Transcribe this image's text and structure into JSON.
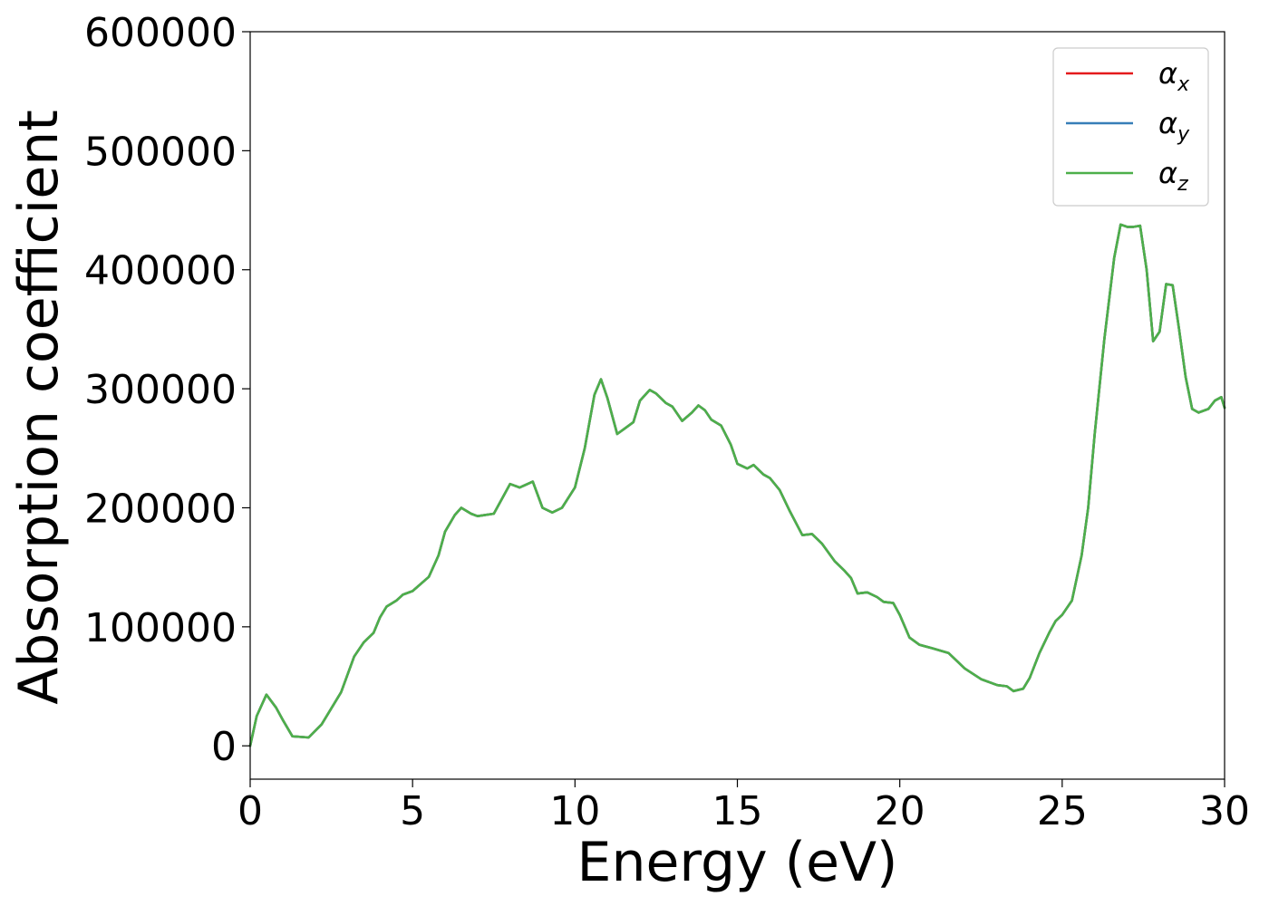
{
  "chart_data": {
    "type": "line",
    "xlabel": "Energy (eV)",
    "ylabel": "Absorption coefficient",
    "xlim": [
      0,
      30
    ],
    "ylim": [
      -28000,
      600000
    ],
    "xticks": [
      0,
      5,
      10,
      15,
      20,
      25,
      30
    ],
    "xtick_labels": [
      "0",
      "5",
      "10",
      "15",
      "20",
      "25",
      "30"
    ],
    "yticks": [
      0,
      100000,
      200000,
      300000,
      400000,
      500000,
      600000
    ],
    "ytick_labels": [
      "0",
      "100000",
      "200000",
      "300000",
      "400000",
      "500000",
      "600000"
    ],
    "grid": false,
    "legend_position": "top-right",
    "series": [
      {
        "name": "αx",
        "symbol": "α",
        "subscript": "x",
        "color": "#e41a1c",
        "x": [
          0,
          0.2,
          0.5,
          0.8,
          1.0,
          1.3,
          1.8,
          2.2,
          2.8,
          3.2,
          3.5,
          3.8,
          4.0,
          4.2,
          4.5,
          4.7,
          5.0,
          5.5,
          5.8,
          6.0,
          6.3,
          6.5,
          6.8,
          7.0,
          7.5,
          8.0,
          8.3,
          8.7,
          9.0,
          9.3,
          9.6,
          10.0,
          10.3,
          10.6,
          10.8,
          11.0,
          11.3,
          11.5,
          11.8,
          12.0,
          12.3,
          12.5,
          12.8,
          13.0,
          13.3,
          13.6,
          13.8,
          14.0,
          14.2,
          14.5,
          14.8,
          15.0,
          15.3,
          15.5,
          15.8,
          16.0,
          16.3,
          16.6,
          17.0,
          17.3,
          17.6,
          18.0,
          18.3,
          18.5,
          18.7,
          19.0,
          19.3,
          19.5,
          19.8,
          20.0,
          20.3,
          20.6,
          21.0,
          21.5,
          22.0,
          22.5,
          23.0,
          23.3,
          23.5,
          23.8,
          24.0,
          24.3,
          24.6,
          24.8,
          25.0,
          25.3,
          25.6,
          25.8,
          26.0,
          26.3,
          26.6,
          26.8,
          27.0,
          27.2,
          27.4,
          27.6,
          27.8,
          28.0,
          28.2,
          28.4,
          28.6,
          28.8,
          29.0,
          29.2,
          29.5,
          29.7,
          29.9,
          30.0
        ],
        "y": [
          0,
          25000,
          43000,
          32000,
          22000,
          8000,
          7000,
          18000,
          45000,
          75000,
          87000,
          95000,
          108000,
          117000,
          122000,
          127000,
          130000,
          142000,
          160000,
          180000,
          194000,
          200000,
          195000,
          193000,
          195000,
          220000,
          217000,
          222000,
          200000,
          196000,
          200000,
          217000,
          250000,
          295000,
          308000,
          292000,
          262000,
          266000,
          272000,
          290000,
          299000,
          296000,
          288000,
          285000,
          273000,
          280000,
          286000,
          282000,
          274000,
          269000,
          253000,
          237000,
          233000,
          236000,
          228000,
          225000,
          215000,
          198000,
          177000,
          178000,
          170000,
          155000,
          147000,
          141000,
          128000,
          129000,
          125000,
          121000,
          120000,
          110000,
          91000,
          85000,
          82000,
          78000,
          65000,
          56000,
          51000,
          50000,
          46000,
          48000,
          57000,
          78000,
          95000,
          105000,
          110000,
          122000,
          160000,
          200000,
          262000,
          342000,
          410000,
          438000,
          436000,
          436000,
          437000,
          400000,
          340000,
          348000,
          388000,
          387000,
          350000,
          310000,
          283000,
          280000,
          283000,
          290000,
          293000,
          284000
        ]
      },
      {
        "name": "αy",
        "symbol": "α",
        "subscript": "y",
        "color": "#377eb8",
        "x": [
          0,
          0.2,
          0.5,
          0.8,
          1.0,
          1.3,
          1.8,
          2.2,
          2.8,
          3.2,
          3.5,
          3.8,
          4.0,
          4.2,
          4.5,
          4.7,
          5.0,
          5.5,
          5.8,
          6.0,
          6.3,
          6.5,
          6.8,
          7.0,
          7.5,
          8.0,
          8.3,
          8.7,
          9.0,
          9.3,
          9.6,
          10.0,
          10.3,
          10.6,
          10.8,
          11.0,
          11.3,
          11.5,
          11.8,
          12.0,
          12.3,
          12.5,
          12.8,
          13.0,
          13.3,
          13.6,
          13.8,
          14.0,
          14.2,
          14.5,
          14.8,
          15.0,
          15.3,
          15.5,
          15.8,
          16.0,
          16.3,
          16.6,
          17.0,
          17.3,
          17.6,
          18.0,
          18.3,
          18.5,
          18.7,
          19.0,
          19.3,
          19.5,
          19.8,
          20.0,
          20.3,
          20.6,
          21.0,
          21.5,
          22.0,
          22.5,
          23.0,
          23.3,
          23.5,
          23.8,
          24.0,
          24.3,
          24.6,
          24.8,
          25.0,
          25.3,
          25.6,
          25.8,
          26.0,
          26.3,
          26.6,
          26.8,
          27.0,
          27.2,
          27.4,
          27.6,
          27.8,
          28.0,
          28.2,
          28.4,
          28.6,
          28.8,
          29.0,
          29.2,
          29.5,
          29.7,
          29.9,
          30.0
        ],
        "y": [
          0,
          25000,
          43000,
          32000,
          22000,
          8000,
          7000,
          18000,
          45000,
          75000,
          87000,
          95000,
          108000,
          117000,
          122000,
          127000,
          130000,
          142000,
          160000,
          180000,
          194000,
          200000,
          195000,
          193000,
          195000,
          220000,
          217000,
          222000,
          200000,
          196000,
          200000,
          217000,
          250000,
          295000,
          308000,
          292000,
          262000,
          266000,
          272000,
          290000,
          299000,
          296000,
          288000,
          285000,
          273000,
          280000,
          286000,
          282000,
          274000,
          269000,
          253000,
          237000,
          233000,
          236000,
          228000,
          225000,
          215000,
          198000,
          177000,
          178000,
          170000,
          155000,
          147000,
          141000,
          128000,
          129000,
          125000,
          121000,
          120000,
          110000,
          91000,
          85000,
          82000,
          78000,
          65000,
          56000,
          51000,
          50000,
          46000,
          48000,
          57000,
          78000,
          95000,
          105000,
          110000,
          122000,
          160000,
          200000,
          262000,
          342000,
          410000,
          438000,
          436000,
          436000,
          437000,
          400000,
          340000,
          348000,
          388000,
          387000,
          350000,
          310000,
          283000,
          280000,
          283000,
          290000,
          293000,
          284000
        ]
      },
      {
        "name": "αz",
        "symbol": "α",
        "subscript": "z",
        "color": "#4daf4a",
        "x": [
          0,
          0.2,
          0.5,
          0.8,
          1.0,
          1.3,
          1.8,
          2.2,
          2.8,
          3.2,
          3.5,
          3.8,
          4.0,
          4.2,
          4.5,
          4.7,
          5.0,
          5.5,
          5.8,
          6.0,
          6.3,
          6.5,
          6.8,
          7.0,
          7.5,
          8.0,
          8.3,
          8.7,
          9.0,
          9.3,
          9.6,
          10.0,
          10.3,
          10.6,
          10.8,
          11.0,
          11.3,
          11.5,
          11.8,
          12.0,
          12.3,
          12.5,
          12.8,
          13.0,
          13.3,
          13.6,
          13.8,
          14.0,
          14.2,
          14.5,
          14.8,
          15.0,
          15.3,
          15.5,
          15.8,
          16.0,
          16.3,
          16.6,
          17.0,
          17.3,
          17.6,
          18.0,
          18.3,
          18.5,
          18.7,
          19.0,
          19.3,
          19.5,
          19.8,
          20.0,
          20.3,
          20.6,
          21.0,
          21.5,
          22.0,
          22.5,
          23.0,
          23.3,
          23.5,
          23.8,
          24.0,
          24.3,
          24.6,
          24.8,
          25.0,
          25.3,
          25.6,
          25.8,
          26.0,
          26.3,
          26.6,
          26.8,
          27.0,
          27.2,
          27.4,
          27.6,
          27.8,
          28.0,
          28.2,
          28.4,
          28.6,
          28.8,
          29.0,
          29.2,
          29.5,
          29.7,
          29.9,
          30.0
        ],
        "y": [
          0,
          25000,
          43000,
          32000,
          22000,
          8000,
          7000,
          18000,
          45000,
          75000,
          87000,
          95000,
          108000,
          117000,
          122000,
          127000,
          130000,
          142000,
          160000,
          180000,
          194000,
          200000,
          195000,
          193000,
          195000,
          220000,
          217000,
          222000,
          200000,
          196000,
          200000,
          217000,
          250000,
          295000,
          308000,
          292000,
          262000,
          266000,
          272000,
          290000,
          299000,
          296000,
          288000,
          285000,
          273000,
          280000,
          286000,
          282000,
          274000,
          269000,
          253000,
          237000,
          233000,
          236000,
          228000,
          225000,
          215000,
          198000,
          177000,
          178000,
          170000,
          155000,
          147000,
          141000,
          128000,
          129000,
          125000,
          121000,
          120000,
          110000,
          91000,
          85000,
          82000,
          78000,
          65000,
          56000,
          51000,
          50000,
          46000,
          48000,
          57000,
          78000,
          95000,
          105000,
          110000,
          122000,
          160000,
          200000,
          262000,
          342000,
          410000,
          438000,
          436000,
          436000,
          437000,
          400000,
          340000,
          348000,
          388000,
          387000,
          350000,
          310000,
          283000,
          280000,
          283000,
          290000,
          293000,
          284000
        ]
      }
    ]
  }
}
